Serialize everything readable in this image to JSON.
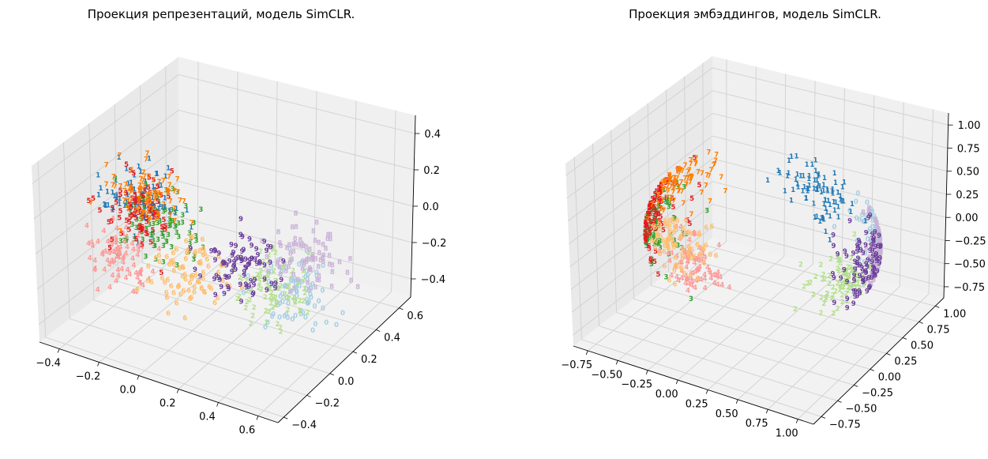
{
  "chart_data": [
    {
      "type": "scatter",
      "title": "Проекция репрезентаций, модель SimCLR.",
      "xlabel": "",
      "ylabel": "",
      "zlabel": "",
      "xlim": [
        -0.5,
        0.7
      ],
      "ylim": [
        -0.45,
        0.7
      ],
      "zlim": [
        -0.48,
        0.48
      ],
      "x_ticks": [
        "−0.4",
        "−0.2",
        "0.0",
        "0.2",
        "0.4",
        "0.6"
      ],
      "y_ticks": [
        "−0.4",
        "−0.2",
        "0.0",
        "0.2",
        "0.4",
        "0.6"
      ],
      "z_ticks": [
        "−0.4",
        "−0.2",
        "0.0",
        "0.2",
        "0.4"
      ],
      "grid": true,
      "point_markers": "digit labels 0-9",
      "class_colors": {
        "0": "#a6cee3",
        "1": "#1f78b4",
        "2": "#b2df8a",
        "3": "#33a02c",
        "4": "#fb9a99",
        "5": "#e31a1c",
        "6": "#fdbf6f",
        "7": "#ff7f00",
        "8": "#cab2d6",
        "9": "#6a3d9a"
      },
      "class_centers": {
        "0": [
          0.45,
          0.1,
          -0.15
        ],
        "1": [
          -0.2,
          -0.05,
          0.2
        ],
        "2": [
          0.2,
          0.3,
          -0.35
        ],
        "3": [
          -0.15,
          0.0,
          0.05
        ],
        "4": [
          -0.35,
          0.0,
          -0.2
        ],
        "5": [
          -0.25,
          0.0,
          0.1
        ],
        "6": [
          -0.05,
          0.1,
          -0.25
        ],
        "7": [
          -0.15,
          -0.1,
          0.25
        ],
        "8": [
          0.45,
          0.25,
          -0.05
        ],
        "9": [
          0.2,
          0.1,
          -0.1
        ]
      },
      "note": "approximate cluster centers per digit class; individual points not recoverable"
    },
    {
      "type": "scatter",
      "title": "Проекция эмбэддингов, модель SimCLR.",
      "xlabel": "",
      "ylabel": "",
      "zlabel": "",
      "xlim": [
        -0.85,
        1.1
      ],
      "ylim": [
        -0.8,
        1.1
      ],
      "zlim": [
        -0.85,
        1.1
      ],
      "x_ticks": [
        "−0.75",
        "−0.50",
        "−0.25",
        "0.00",
        "0.25",
        "0.50",
        "0.75",
        "1.00"
      ],
      "y_ticks": [
        "−0.75",
        "−0.50",
        "−0.25",
        "0.00",
        "0.25",
        "0.50",
        "0.75",
        "1.00"
      ],
      "z_ticks": [
        "−0.75",
        "−0.50",
        "−0.25",
        "0.00",
        "0.25",
        "0.50",
        "0.75",
        "1.00"
      ],
      "grid": true,
      "point_markers": "digit labels 0-9",
      "class_colors": {
        "0": "#a6cee3",
        "1": "#1f78b4",
        "2": "#b2df8a",
        "3": "#33a02c",
        "4": "#fb9a99",
        "5": "#e31a1c",
        "6": "#fdbf6f",
        "7": "#ff7f00",
        "8": "#cab2d6",
        "9": "#6a3d9a"
      },
      "class_centers": {
        "0": [
          0.8,
          0.4,
          0.2
        ],
        "1": [
          0.6,
          0.2,
          0.8
        ],
        "2": [
          0.6,
          0.7,
          -0.6
        ],
        "3": [
          -0.6,
          0.0,
          0.0
        ],
        "4": [
          -0.5,
          0.2,
          -0.5
        ],
        "5": [
          -0.4,
          0.0,
          0.2
        ],
        "6": [
          -0.6,
          0.2,
          -0.3
        ],
        "7": [
          -0.3,
          -0.1,
          0.6
        ],
        "8": [
          0.9,
          0.6,
          0.0
        ],
        "9": [
          0.6,
          0.6,
          -0.2
        ]
      },
      "note": "approximate cluster centers per digit class; points lie near a sphere shell"
    }
  ]
}
